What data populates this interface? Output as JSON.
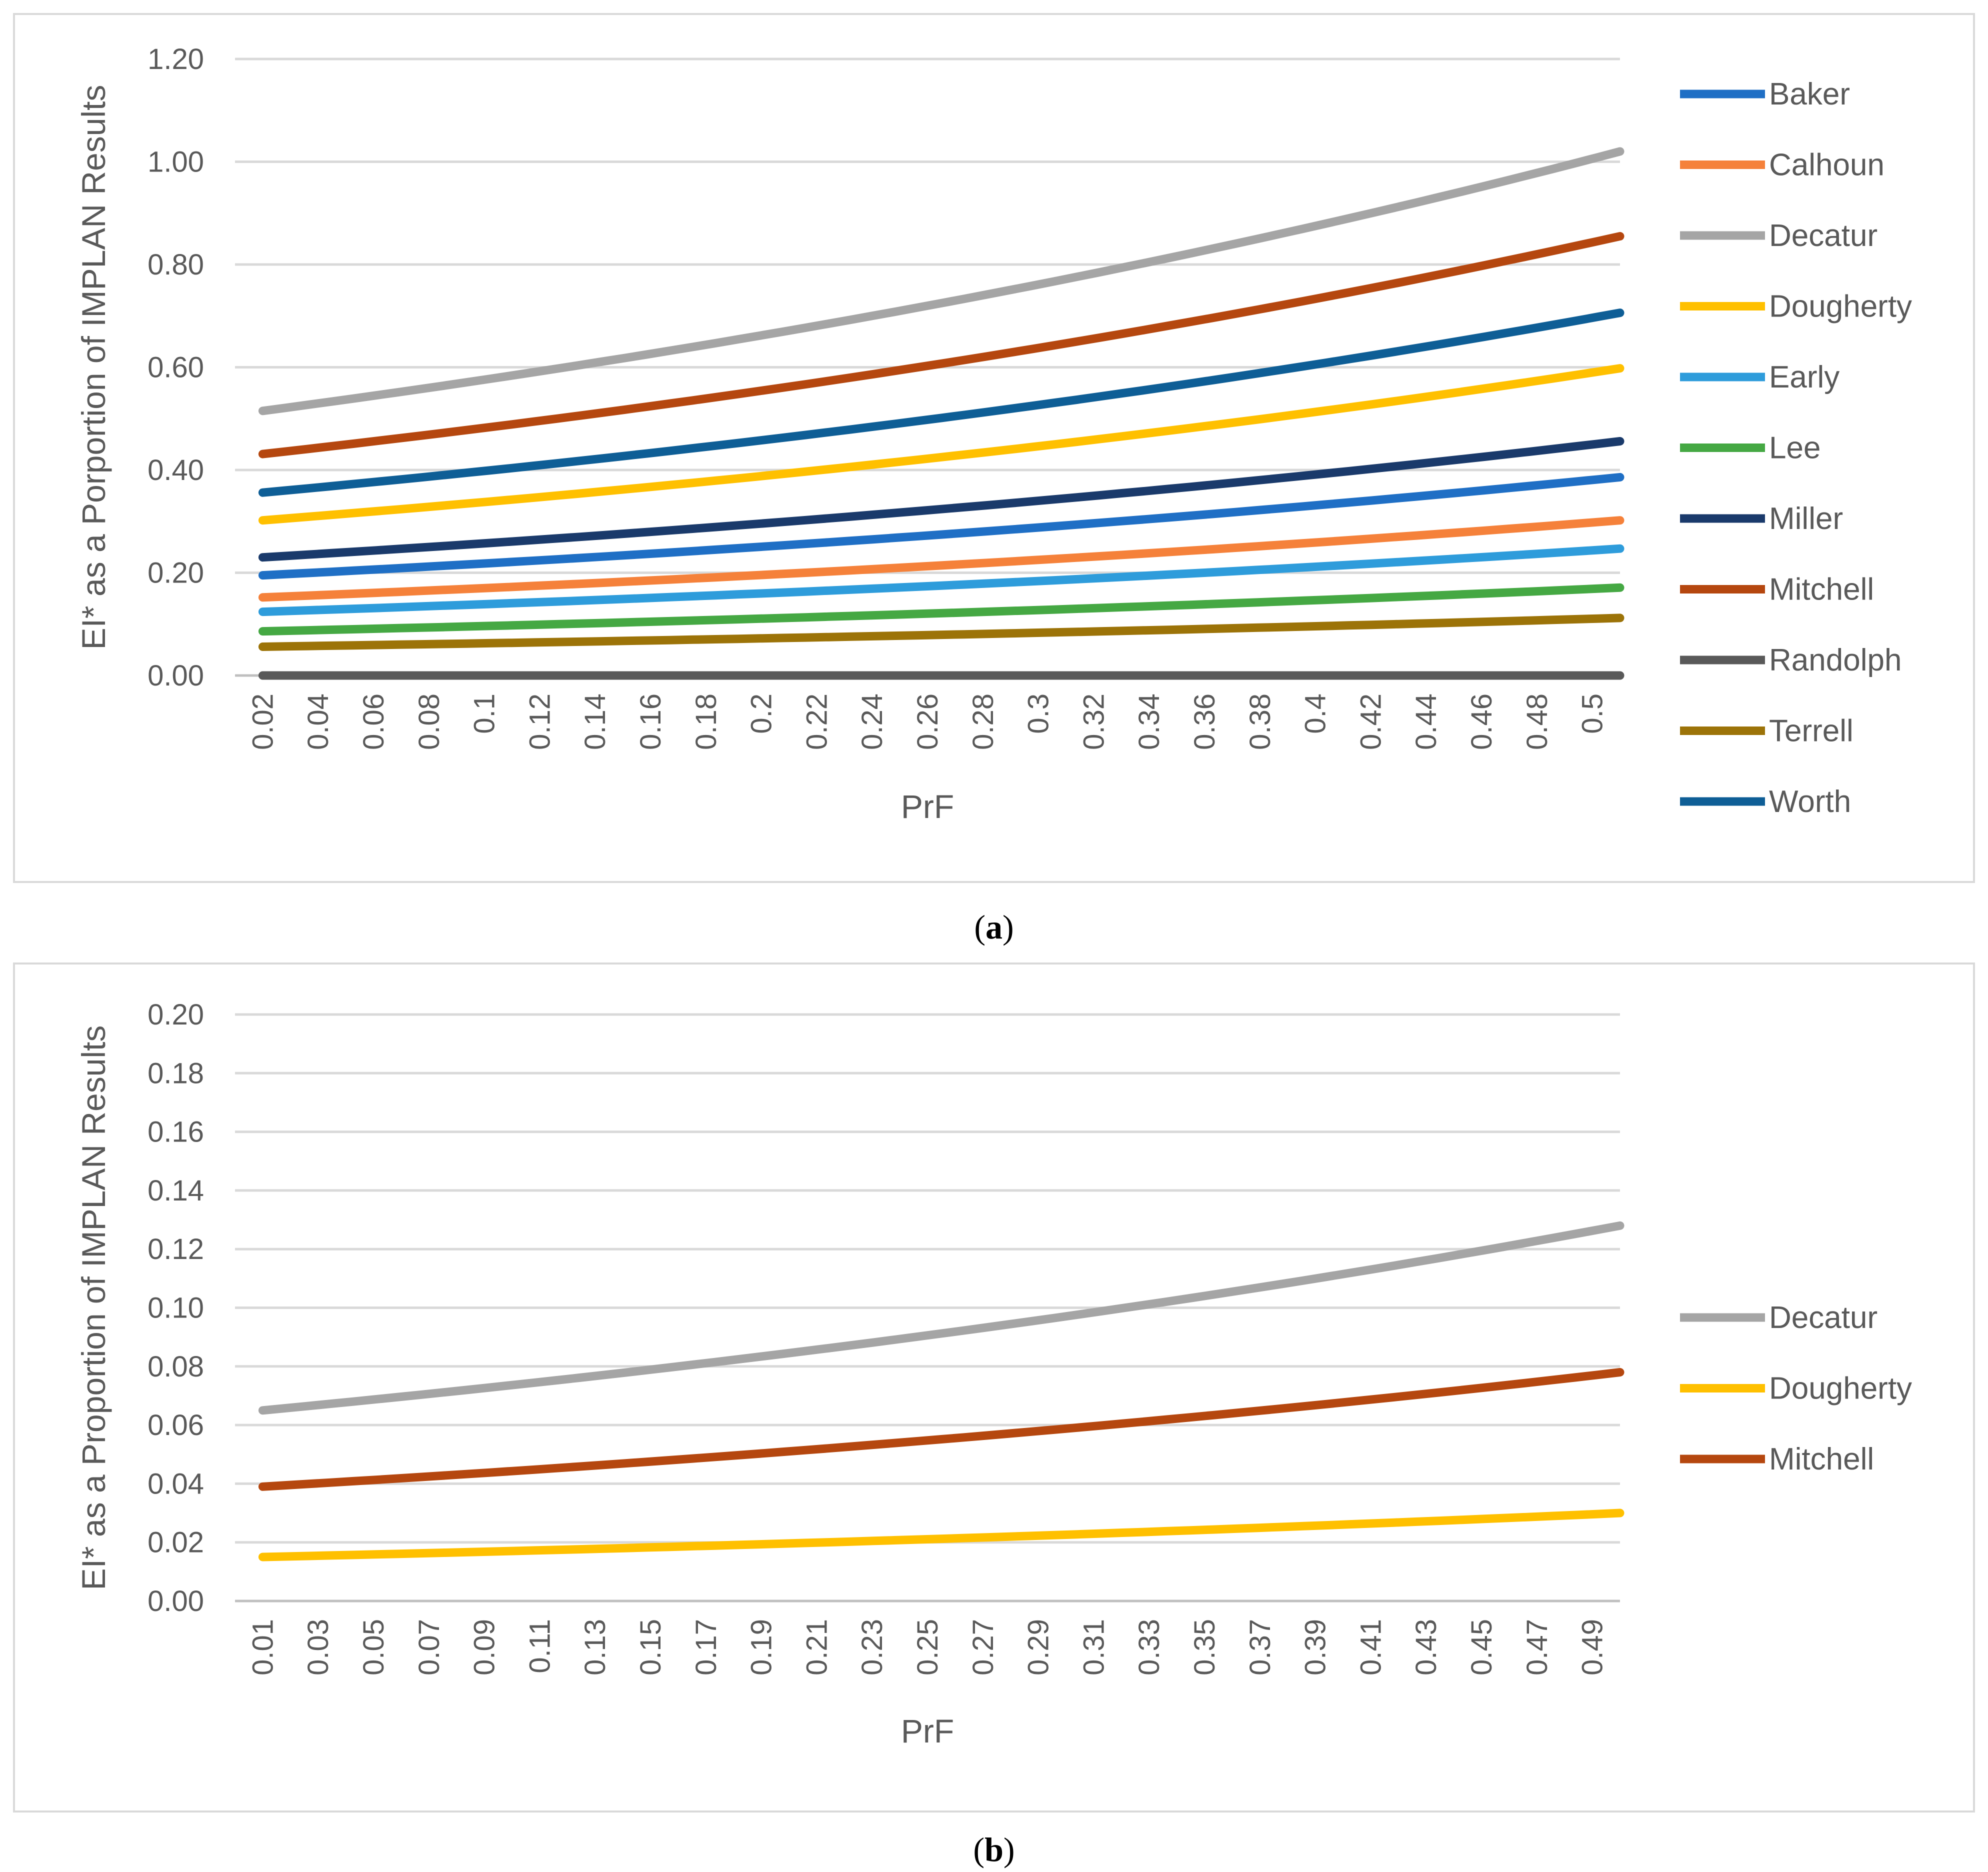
{
  "figure": {
    "caption_a": "a",
    "caption_b": "b"
  },
  "chart_data": [
    {
      "type": "line",
      "panel": "a",
      "xlabel": "PrF",
      "ylabel": "EI* as a Porportion of IMPLAN Results",
      "ylim": [
        0,
        1.2
      ],
      "yticks": [
        "0.00",
        "0.20",
        "0.40",
        "0.60",
        "0.80",
        "1.00",
        "1.20"
      ],
      "x_ticks": [
        "0.02",
        "0.04",
        "0.06",
        "0.08",
        "0.1",
        "0.12",
        "0.14",
        "0.16",
        "0.18",
        "0.2",
        "0.22",
        "0.24",
        "0.26",
        "0.28",
        "0.3",
        "0.32",
        "0.34",
        "0.36",
        "0.38",
        "0.4",
        "0.42",
        "0.44",
        "0.46",
        "0.48",
        "0.5"
      ],
      "x_range": [
        0.02,
        0.51
      ],
      "grid": "horizontal",
      "legend_position": "right",
      "series": [
        {
          "name": "Baker",
          "color": "#1f6fc5",
          "start": 0.195,
          "end": 0.386
        },
        {
          "name": "Calhoun",
          "color": "#f5813a",
          "start": 0.152,
          "end": 0.302
        },
        {
          "name": "Decatur",
          "color": "#a5a5a5",
          "start": 0.515,
          "end": 1.02
        },
        {
          "name": "Dougherty",
          "color": "#ffc000",
          "start": 0.302,
          "end": 0.598
        },
        {
          "name": "Early",
          "color": "#2e9cdb",
          "start": 0.124,
          "end": 0.247
        },
        {
          "name": "Lee",
          "color": "#45a843",
          "start": 0.086,
          "end": 0.171
        },
        {
          "name": "Miller",
          "color": "#1a3a6b",
          "start": 0.23,
          "end": 0.456
        },
        {
          "name": "Mitchell",
          "color": "#b5470f",
          "start": 0.431,
          "end": 0.855
        },
        {
          "name": "Randolph",
          "color": "#595959",
          "start": 0.0,
          "end": 0.0
        },
        {
          "name": "Terrell",
          "color": "#9c7308",
          "start": 0.056,
          "end": 0.112
        },
        {
          "name": "Worth",
          "color": "#0e5e96",
          "start": 0.356,
          "end": 0.706
        }
      ]
    },
    {
      "type": "line",
      "panel": "b",
      "xlabel": "PrF",
      "ylabel": "EI* as a Proportion of IMPLAN Results",
      "ylim": [
        0,
        0.2
      ],
      "yticks": [
        "0.00",
        "0.02",
        "0.04",
        "0.06",
        "0.08",
        "0.10",
        "0.12",
        "0.14",
        "0.16",
        "0.18",
        "0.20"
      ],
      "x_ticks": [
        "0.01",
        "0.03",
        "0.05",
        "0.07",
        "0.09",
        "0.11",
        "0.13",
        "0.15",
        "0.17",
        "0.19",
        "0.21",
        "0.23",
        "0.25",
        "0.27",
        "0.29",
        "0.31",
        "0.33",
        "0.35",
        "0.37",
        "0.39",
        "0.41",
        "0.43",
        "0.45",
        "0.47",
        "0.49"
      ],
      "x_range": [
        0.01,
        0.5
      ],
      "grid": "horizontal",
      "legend_position": "right",
      "series": [
        {
          "name": "Decatur",
          "color": "#a5a5a5",
          "start": 0.065,
          "end": 0.128
        },
        {
          "name": "Dougherty",
          "color": "#ffc000",
          "start": 0.015,
          "end": 0.03
        },
        {
          "name": "Mitchell",
          "color": "#b5470f",
          "start": 0.039,
          "end": 0.078
        }
      ]
    }
  ]
}
